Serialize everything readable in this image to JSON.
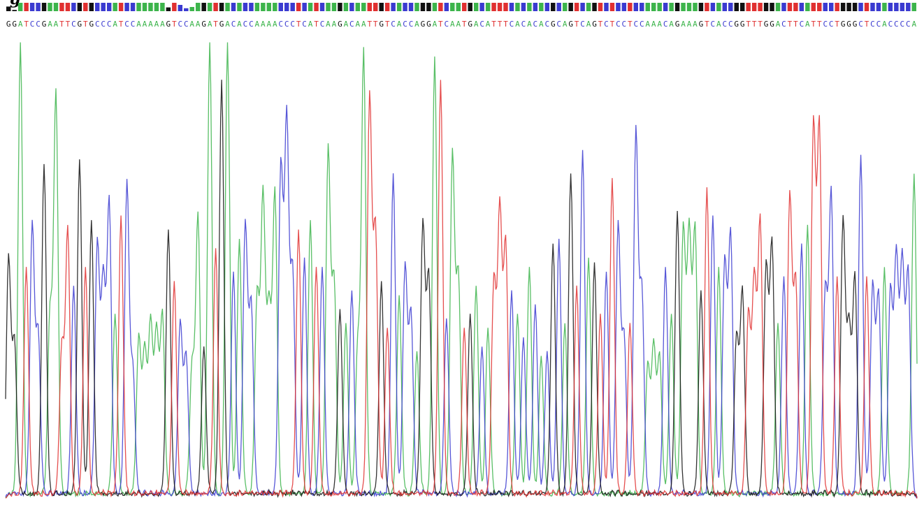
{
  "figure": {
    "corner_label": "g"
  },
  "colors": {
    "A": "#3cb44b",
    "C": "#3a3ad0",
    "G": "#111111",
    "T": "#e03030",
    "quality_bar": "#2d2dd6"
  },
  "chart_data": {
    "type": "line",
    "title": "",
    "xlabel": "",
    "ylabel": "",
    "legend": "none",
    "grid": false,
    "sequence": "GGATCCGAATTCGTGCCCATCCAAAAAGTCCAAGATGACACCAAAACCCTCATCAAGACAATTGTCACCAGGATCAATGACATTTCACACACGCAGTCAGTCTCCTCCAAACAGAAAGTCACCGGTTTGGACTTCATTCCTGGGCTCCACCCCA",
    "series": [
      {
        "name": "A",
        "color": "#3cb44b"
      },
      {
        "name": "C",
        "color": "#3a3ad0"
      },
      {
        "name": "G",
        "color": "#111111"
      },
      {
        "name": "T",
        "color": "#e03030"
      }
    ],
    "peak_heights_percent": [
      0.52,
      0.34,
      0.98,
      0.5,
      0.59,
      0.36,
      0.72,
      0.4,
      0.87,
      0.33,
      0.58,
      0.46,
      0.73,
      0.5,
      0.6,
      0.55,
      0.47,
      0.64,
      0.4,
      0.61,
      0.68,
      0.28,
      0.35,
      0.32,
      0.38,
      0.36,
      0.4,
      0.58,
      0.47,
      0.38,
      0.31,
      0.29,
      0.61,
      0.33,
      0.98,
      0.54,
      0.9,
      0.98,
      0.49,
      0.56,
      0.59,
      0.42,
      0.44,
      0.65,
      0.41,
      0.66,
      0.71,
      0.81,
      0.49,
      0.58,
      0.52,
      0.6,
      0.5,
      0.5,
      0.75,
      0.47,
      0.41,
      0.38,
      0.45,
      0.33,
      0.96,
      0.86,
      0.58,
      0.47,
      0.37,
      0.7,
      0.44,
      0.5,
      0.4,
      0.32,
      0.59,
      0.48,
      0.95,
      0.9,
      0.39,
      0.74,
      0.48,
      0.37,
      0.4,
      0.46,
      0.33,
      0.37,
      0.47,
      0.62,
      0.55,
      0.45,
      0.4,
      0.35,
      0.5,
      0.42,
      0.31,
      0.32,
      0.55,
      0.56,
      0.38,
      0.7,
      0.46,
      0.75,
      0.52,
      0.51,
      0.4,
      0.49,
      0.69,
      0.59,
      0.35,
      0.38,
      0.79,
      0.45,
      0.29,
      0.33,
      0.31,
      0.5,
      0.4,
      0.62,
      0.58,
      0.57,
      0.58,
      0.45,
      0.67,
      0.61,
      0.5,
      0.51,
      0.57,
      0.35,
      0.45,
      0.4,
      0.47,
      0.6,
      0.5,
      0.55,
      0.38,
      0.48,
      0.65,
      0.47,
      0.55,
      0.59,
      0.8,
      0.8,
      0.45,
      0.66,
      0.48,
      0.6,
      0.37,
      0.48,
      0.74,
      0.48,
      0.46,
      0.44,
      0.5,
      0.45,
      0.52,
      0.51,
      0.49,
      0.7
    ],
    "quality_values": [
      0.55,
      0.15,
      1,
      1,
      1,
      1,
      1,
      1,
      1,
      1,
      1,
      1,
      1,
      1,
      1,
      1,
      1,
      1,
      1,
      1,
      1,
      1,
      1,
      1,
      1,
      1,
      1,
      0.45,
      1,
      0.75,
      0.35,
      0.5,
      1,
      1,
      1,
      1,
      1,
      1,
      1,
      1,
      1,
      1,
      1,
      1,
      1,
      1,
      1,
      1,
      1,
      1,
      1,
      1,
      1,
      1,
      1,
      1,
      1,
      1,
      1,
      1,
      1,
      1,
      1,
      1,
      1,
      1,
      1,
      1,
      1,
      1,
      1,
      1,
      1,
      1,
      1,
      1,
      1,
      1,
      1,
      1,
      1,
      1,
      1,
      1,
      1,
      1,
      1,
      1,
      1,
      1,
      1,
      1,
      1,
      1,
      1,
      1,
      1,
      1,
      1,
      1,
      1,
      1,
      1,
      1,
      1,
      1,
      1,
      1,
      1,
      1,
      1,
      1,
      1,
      1,
      1,
      1,
      1,
      1,
      1,
      1,
      1,
      1,
      1,
      1,
      1,
      1,
      1,
      1,
      1,
      1,
      1,
      1,
      1,
      1,
      1,
      1,
      1,
      1,
      1,
      1,
      1,
      1,
      1,
      1,
      1,
      1,
      1,
      1,
      1,
      1,
      1,
      1,
      1,
      1,
      1,
      1,
      1
    ]
  }
}
